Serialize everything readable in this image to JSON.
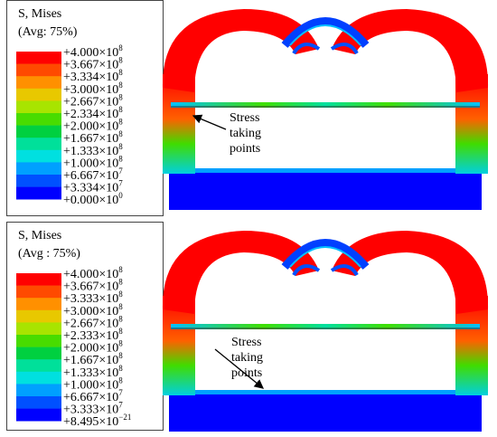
{
  "panels": [
    {
      "legend": {
        "title": "S, Mises",
        "avg": "(Avg: 75%)",
        "colors": [
          "#ff0000",
          "#ff4a00",
          "#ff9000",
          "#e8c800",
          "#a8e400",
          "#48dc00",
          "#00d040",
          "#00e09a",
          "#00e0e0",
          "#00a0ff",
          "#0050ff",
          "#0000ff"
        ],
        "labels": [
          {
            "base": "+4.000×10",
            "exp": "8"
          },
          {
            "base": "+3.667×10",
            "exp": "8"
          },
          {
            "base": "+3.334×10",
            "exp": "8"
          },
          {
            "base": "+3.000×10",
            "exp": "8"
          },
          {
            "base": "+2.667×10",
            "exp": "8"
          },
          {
            "base": "+2.334×10",
            "exp": "8"
          },
          {
            "base": "+2.000×10",
            "exp": "8"
          },
          {
            "base": "+1.667×10",
            "exp": "8"
          },
          {
            "base": "+1.333×10",
            "exp": "8"
          },
          {
            "base": "+1.000×10",
            "exp": "8"
          },
          {
            "base": "+6.667×10",
            "exp": "7"
          },
          {
            "base": "+3.334×10",
            "exp": "7"
          },
          {
            "base": "+0.000×10",
            "exp": "0"
          }
        ]
      },
      "annotation": [
        "Stress",
        "taking",
        "points"
      ]
    },
    {
      "legend": {
        "title": "S, Mises",
        "avg": "(Avg : 75%)",
        "colors": [
          "#ff0000",
          "#ff4a00",
          "#ff9000",
          "#e8c800",
          "#a8e400",
          "#48dc00",
          "#00d040",
          "#00e09a",
          "#00e0e0",
          "#00a0ff",
          "#0050ff",
          "#0000ff"
        ],
        "labels": [
          {
            "base": "+4.000×10",
            "exp": "8"
          },
          {
            "base": "+3.667×10",
            "exp": "8"
          },
          {
            "base": "+3.333×10",
            "exp": "8"
          },
          {
            "base": "+3.000×10",
            "exp": "8"
          },
          {
            "base": "+2.667×10",
            "exp": "8"
          },
          {
            "base": "+2.333×10",
            "exp": "8"
          },
          {
            "base": "+2.000×10",
            "exp": "8"
          },
          {
            "base": "+1.667×10",
            "exp": "8"
          },
          {
            "base": "+1.333×10",
            "exp": "8"
          },
          {
            "base": "+1.000×10",
            "exp": "8"
          },
          {
            "base": "+6.667×10",
            "exp": "7"
          },
          {
            "base": "+3.333×10",
            "exp": "7"
          },
          {
            "base": "+8.495×10",
            "exp": "−21"
          }
        ]
      },
      "annotation": [
        "Stress",
        "taking",
        "points"
      ]
    }
  ]
}
